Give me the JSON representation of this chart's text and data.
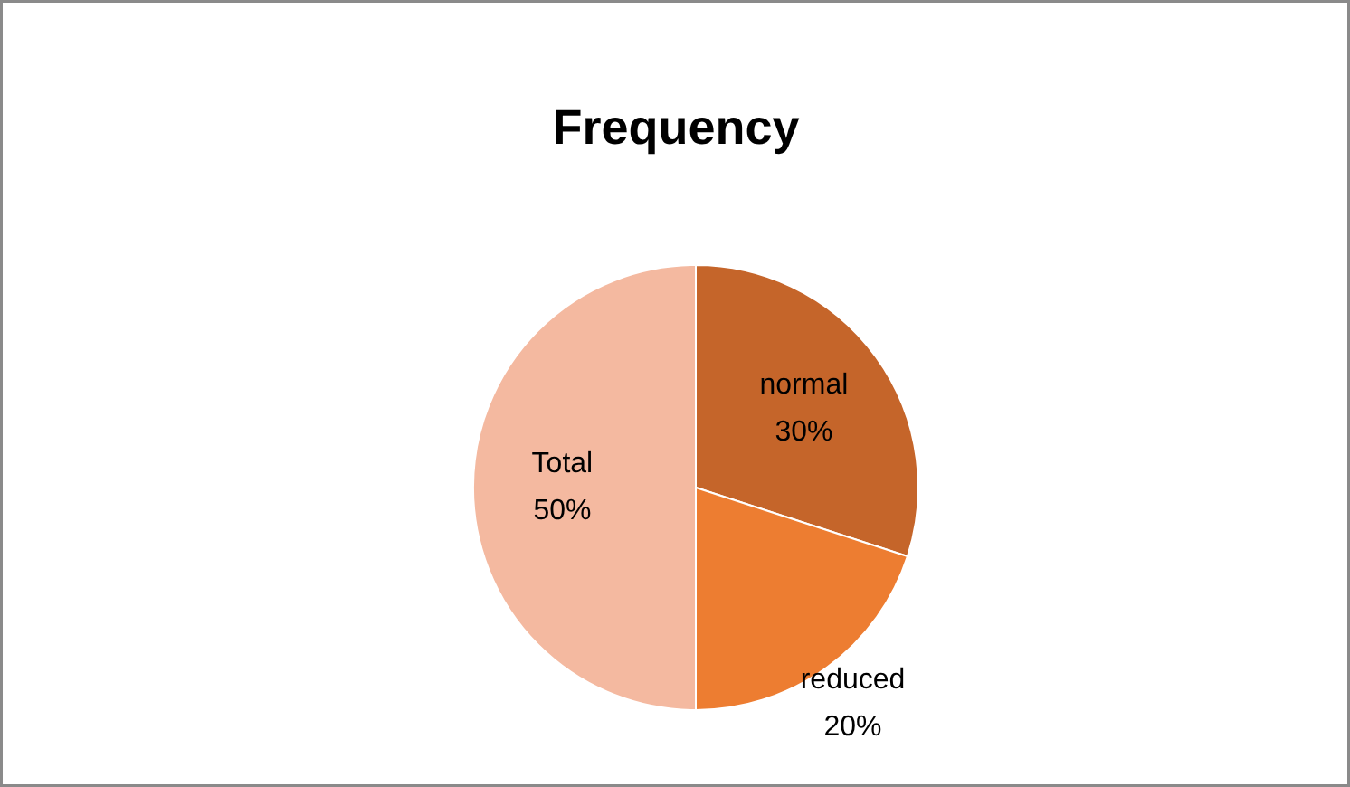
{
  "chart_data": {
    "type": "pie",
    "title": "Frequency",
    "categories": [
      "normal",
      "reduced",
      "Total"
    ],
    "values": [
      30,
      20,
      50
    ],
    "value_labels": [
      "30%",
      "20%",
      "50%"
    ],
    "colors": [
      "#c5652a",
      "#ed7d31",
      "#f4b9a0"
    ]
  }
}
